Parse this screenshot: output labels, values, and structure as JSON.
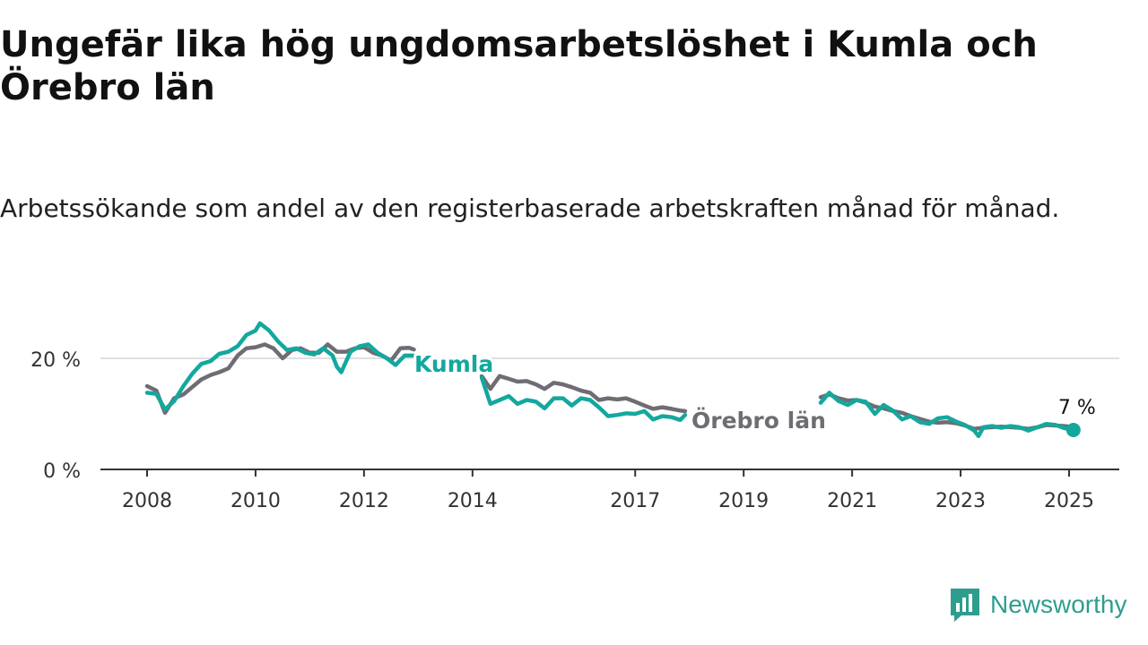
{
  "title": "Ungefär lika hög ungdomsarbetslöshet i Kumla och Örebro län",
  "subtitle": "Arbetssökande som andel av den registerbaserade arbetskraften månad för månad.",
  "brand": {
    "name": "Newsworthy"
  },
  "chart_data": {
    "type": "line",
    "ylim": [
      0,
      30
    ],
    "xlim": [
      2007.75,
      2025.95
    ],
    "y_ticks": [
      0,
      20
    ],
    "y_tick_labels": [
      "0 %",
      "20 %"
    ],
    "x_ticks": [
      2008,
      2010,
      2012,
      2014,
      2017,
      2019,
      2021,
      2023,
      2025
    ],
    "x_tick_labels": [
      "2008",
      "2010",
      "2012",
      "2014",
      "2017",
      "2019",
      "2021",
      "2023",
      "2025"
    ],
    "grid": true,
    "end_label": "7 %",
    "colors": {
      "Kumla": "#13a89e",
      "Örebro län": "#6f6c73"
    },
    "series": [
      {
        "name": "Kumla",
        "segments": [
          [
            [
              2008.0,
              13.8
            ],
            [
              2008.17,
              13.6
            ],
            [
              2008.33,
              10.8
            ],
            [
              2008.5,
              12.3
            ],
            [
              2008.67,
              15.0
            ],
            [
              2008.83,
              17.2
            ],
            [
              2009.0,
              19.0
            ],
            [
              2009.17,
              19.5
            ],
            [
              2009.33,
              20.8
            ],
            [
              2009.5,
              21.2
            ],
            [
              2009.67,
              22.2
            ],
            [
              2009.83,
              24.2
            ],
            [
              2010.0,
              25.0
            ],
            [
              2010.08,
              26.3
            ],
            [
              2010.25,
              25.0
            ],
            [
              2010.42,
              23.0
            ],
            [
              2010.58,
              21.5
            ],
            [
              2010.75,
              21.8
            ],
            [
              2010.92,
              21.0
            ],
            [
              2011.08,
              20.7
            ],
            [
              2011.25,
              21.8
            ],
            [
              2011.42,
              20.5
            ],
            [
              2011.5,
              18.5
            ],
            [
              2011.58,
              17.5
            ],
            [
              2011.75,
              21.2
            ],
            [
              2011.92,
              22.2
            ],
            [
              2012.08,
              22.5
            ],
            [
              2012.25,
              21.0
            ],
            [
              2012.42,
              20.0
            ],
            [
              2012.58,
              18.8
            ],
            [
              2012.75,
              20.5
            ],
            [
              2012.92,
              20.5
            ]
          ],
          [
            [
              2014.17,
              16.5
            ],
            [
              2014.33,
              11.8
            ],
            [
              2014.5,
              12.5
            ],
            [
              2014.67,
              13.2
            ],
            [
              2014.83,
              11.8
            ],
            [
              2015.0,
              12.5
            ],
            [
              2015.17,
              12.2
            ],
            [
              2015.33,
              11.0
            ],
            [
              2015.5,
              12.8
            ],
            [
              2015.67,
              12.8
            ],
            [
              2015.83,
              11.5
            ],
            [
              2016.0,
              12.8
            ],
            [
              2016.17,
              12.5
            ],
            [
              2016.33,
              11.2
            ],
            [
              2016.5,
              9.6
            ],
            [
              2016.67,
              9.8
            ],
            [
              2016.83,
              10.1
            ],
            [
              2017.0,
              10.0
            ],
            [
              2017.17,
              10.5
            ],
            [
              2017.33,
              9.0
            ],
            [
              2017.5,
              9.6
            ],
            [
              2017.67,
              9.4
            ],
            [
              2017.83,
              8.9
            ],
            [
              2017.92,
              9.8
            ]
          ],
          [
            [
              2020.42,
              12.0
            ],
            [
              2020.58,
              13.8
            ],
            [
              2020.75,
              12.3
            ],
            [
              2020.92,
              11.6
            ],
            [
              2021.08,
              12.5
            ],
            [
              2021.25,
              12.2
            ],
            [
              2021.42,
              10.0
            ],
            [
              2021.58,
              11.6
            ],
            [
              2021.75,
              10.6
            ],
            [
              2021.92,
              9.0
            ],
            [
              2022.08,
              9.6
            ],
            [
              2022.25,
              8.5
            ],
            [
              2022.42,
              8.2
            ],
            [
              2022.58,
              9.2
            ],
            [
              2022.75,
              9.4
            ],
            [
              2022.92,
              8.6
            ],
            [
              2023.08,
              8.0
            ],
            [
              2023.25,
              7.0
            ],
            [
              2023.33,
              6.0
            ],
            [
              2023.42,
              7.6
            ],
            [
              2023.58,
              7.8
            ],
            [
              2023.75,
              7.5
            ],
            [
              2023.92,
              7.8
            ],
            [
              2024.08,
              7.6
            ],
            [
              2024.25,
              7.0
            ],
            [
              2024.42,
              7.6
            ],
            [
              2024.58,
              8.2
            ],
            [
              2024.75,
              8.0
            ],
            [
              2024.92,
              7.4
            ],
            [
              2025.08,
              7.1
            ]
          ]
        ]
      },
      {
        "name": "Örebro län",
        "segments": [
          [
            [
              2008.0,
              15.0
            ],
            [
              2008.17,
              14.2
            ],
            [
              2008.33,
              10.2
            ],
            [
              2008.5,
              12.8
            ],
            [
              2008.67,
              13.5
            ],
            [
              2008.83,
              14.8
            ],
            [
              2009.0,
              16.2
            ],
            [
              2009.17,
              17.0
            ],
            [
              2009.33,
              17.5
            ],
            [
              2009.5,
              18.2
            ],
            [
              2009.67,
              20.5
            ],
            [
              2009.83,
              21.8
            ],
            [
              2010.0,
              22.0
            ],
            [
              2010.17,
              22.5
            ],
            [
              2010.33,
              21.8
            ],
            [
              2010.5,
              20.0
            ],
            [
              2010.67,
              21.5
            ],
            [
              2010.83,
              21.8
            ],
            [
              2011.0,
              21.0
            ],
            [
              2011.17,
              21.0
            ],
            [
              2011.33,
              22.5
            ],
            [
              2011.5,
              21.2
            ],
            [
              2011.67,
              21.2
            ],
            [
              2011.83,
              21.8
            ],
            [
              2012.0,
              22.0
            ],
            [
              2012.17,
              21.0
            ],
            [
              2012.33,
              20.5
            ],
            [
              2012.5,
              19.6
            ],
            [
              2012.67,
              21.8
            ],
            [
              2012.83,
              21.9
            ],
            [
              2012.92,
              21.6
            ]
          ],
          [
            [
              2014.17,
              16.8
            ],
            [
              2014.33,
              14.5
            ],
            [
              2014.5,
              16.8
            ],
            [
              2014.67,
              16.3
            ],
            [
              2014.83,
              15.8
            ],
            [
              2015.0,
              15.9
            ],
            [
              2015.17,
              15.3
            ],
            [
              2015.33,
              14.5
            ],
            [
              2015.5,
              15.6
            ],
            [
              2015.67,
              15.3
            ],
            [
              2015.83,
              14.8
            ],
            [
              2016.0,
              14.2
            ],
            [
              2016.17,
              13.8
            ],
            [
              2016.33,
              12.5
            ],
            [
              2016.5,
              12.8
            ],
            [
              2016.67,
              12.6
            ],
            [
              2016.83,
              12.8
            ],
            [
              2017.0,
              12.2
            ],
            [
              2017.17,
              11.5
            ],
            [
              2017.33,
              10.9
            ],
            [
              2017.5,
              11.2
            ],
            [
              2017.67,
              10.9
            ],
            [
              2017.83,
              10.6
            ],
            [
              2017.92,
              10.5
            ]
          ],
          [
            [
              2020.42,
              13.0
            ],
            [
              2020.58,
              13.5
            ],
            [
              2020.75,
              12.8
            ],
            [
              2020.92,
              12.4
            ],
            [
              2021.08,
              12.5
            ],
            [
              2021.25,
              12.0
            ],
            [
              2021.42,
              11.3
            ],
            [
              2021.58,
              11.0
            ],
            [
              2021.75,
              10.5
            ],
            [
              2021.92,
              10.2
            ],
            [
              2022.08,
              9.6
            ],
            [
              2022.25,
              9.1
            ],
            [
              2022.42,
              8.6
            ],
            [
              2022.58,
              8.4
            ],
            [
              2022.75,
              8.5
            ],
            [
              2022.92,
              8.3
            ],
            [
              2023.08,
              7.9
            ],
            [
              2023.25,
              7.3
            ],
            [
              2023.42,
              7.5
            ],
            [
              2023.58,
              7.6
            ],
            [
              2023.75,
              7.7
            ],
            [
              2023.92,
              7.6
            ],
            [
              2024.08,
              7.5
            ],
            [
              2024.25,
              7.3
            ],
            [
              2024.42,
              7.6
            ],
            [
              2024.58,
              8.0
            ],
            [
              2024.75,
              7.9
            ],
            [
              2024.92,
              7.8
            ],
            [
              2025.08,
              7.6
            ]
          ]
        ]
      }
    ]
  }
}
